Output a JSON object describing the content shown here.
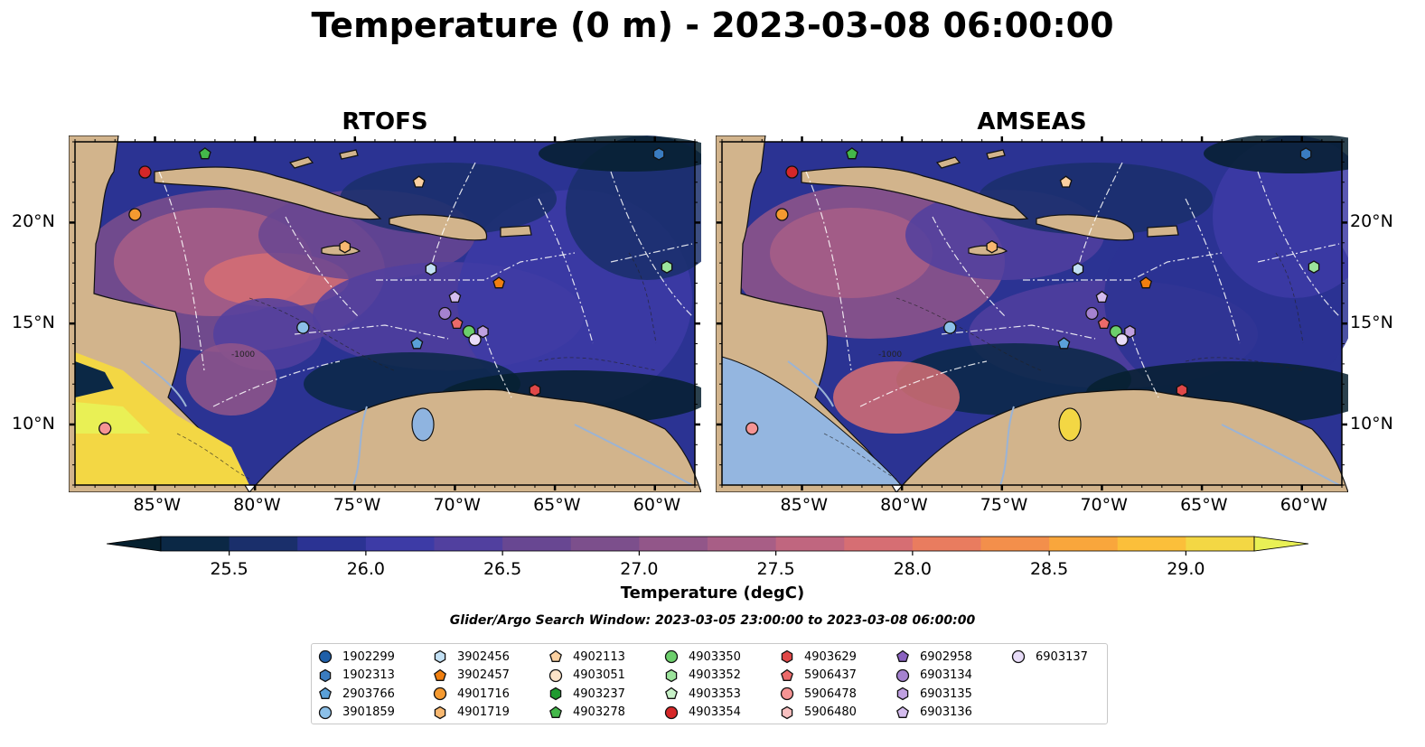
{
  "title": "Temperature (0 m) - 2023-03-08 06:00:00",
  "panels": [
    {
      "title": "RTOFS",
      "lat_labels_side": "left"
    },
    {
      "title": "AMSEAS",
      "lat_labels_side": "right"
    }
  ],
  "map_extent": {
    "lon_min": -89,
    "lon_max": -58,
    "lat_min": 7,
    "lat_max": 24
  },
  "lon_ticks": [
    {
      "value": -85,
      "label": "85°W"
    },
    {
      "value": -80,
      "label": "80°W"
    },
    {
      "value": -75,
      "label": "75°W"
    },
    {
      "value": -70,
      "label": "70°W"
    },
    {
      "value": -65,
      "label": "65°W"
    },
    {
      "value": -60,
      "label": "60°W"
    }
  ],
  "lat_ticks": [
    {
      "value": 20,
      "label": "20°N"
    },
    {
      "value": 15,
      "label": "15°N"
    },
    {
      "value": 10,
      "label": "10°N"
    }
  ],
  "contour_label": "-1000",
  "colorbar": {
    "label": "Temperature (degC)",
    "min": 25.25,
    "max": 29.25,
    "extend": "both",
    "ticks": [
      {
        "value": 25.5,
        "label": "25.5"
      },
      {
        "value": 26.0,
        "label": "26.0"
      },
      {
        "value": 26.5,
        "label": "26.5"
      },
      {
        "value": 27.0,
        "label": "27.0"
      },
      {
        "value": 27.5,
        "label": "27.5"
      },
      {
        "value": 28.0,
        "label": "28.0"
      },
      {
        "value": 28.5,
        "label": "28.5"
      },
      {
        "value": 29.0,
        "label": "29.0"
      }
    ],
    "colors": [
      "#06202f",
      "#0b2845",
      "#1a2f6b",
      "#2b3393",
      "#3d3ba6",
      "#51409f",
      "#684792",
      "#7c4f8c",
      "#925689",
      "#a85e86",
      "#c0667f",
      "#d66e73",
      "#e97c5f",
      "#f38f4b",
      "#f9a63c",
      "#fbbf3a",
      "#f3d744",
      "#e9f055"
    ]
  },
  "subtitle": "Glider/Argo Search Window: 2023-03-05 23:00:00 to 2023-03-08 06:00:00",
  "legend": [
    {
      "id": "1902299",
      "marker": "circle",
      "color": "#1f5fa8"
    },
    {
      "id": "1902313",
      "marker": "hexagon",
      "color": "#3a7cc0"
    },
    {
      "id": "2903766",
      "marker": "pentagon",
      "color": "#5aa0d8"
    },
    {
      "id": "3901859",
      "marker": "circle",
      "color": "#8cc0e8"
    },
    {
      "id": "3902456",
      "marker": "hexagon",
      "color": "#c2e0f4"
    },
    {
      "id": "3902457",
      "marker": "pentagon",
      "color": "#f07f10"
    },
    {
      "id": "4901716",
      "marker": "circle",
      "color": "#f59a30"
    },
    {
      "id": "4901719",
      "marker": "hexagon",
      "color": "#f8b870"
    },
    {
      "id": "4902113",
      "marker": "pentagon",
      "color": "#fbd0a0"
    },
    {
      "id": "4903051",
      "marker": "circle",
      "color": "#fde3c8"
    },
    {
      "id": "4903237",
      "marker": "hexagon",
      "color": "#1f9a30"
    },
    {
      "id": "4903278",
      "marker": "pentagon",
      "color": "#44b84a"
    },
    {
      "id": "4903350",
      "marker": "circle",
      "color": "#6ccf6c"
    },
    {
      "id": "4903352",
      "marker": "hexagon",
      "color": "#9ce49c"
    },
    {
      "id": "4903353",
      "marker": "pentagon",
      "color": "#c8f2c8"
    },
    {
      "id": "4903354",
      "marker": "circle",
      "color": "#d62728"
    },
    {
      "id": "4903629",
      "marker": "hexagon",
      "color": "#e04848"
    },
    {
      "id": "5906437",
      "marker": "pentagon",
      "color": "#ec6a6a"
    },
    {
      "id": "5906478",
      "marker": "circle",
      "color": "#f59494"
    },
    {
      "id": "5906480",
      "marker": "hexagon",
      "color": "#f8c0c0"
    },
    {
      "id": "6902958",
      "marker": "pentagon",
      "color": "#8a62c0"
    },
    {
      "id": "6903134",
      "marker": "circle",
      "color": "#a582d0"
    },
    {
      "id": "6903135",
      "marker": "hexagon",
      "color": "#bfa0e0"
    },
    {
      "id": "6903136",
      "marker": "pentagon",
      "color": "#d4bcee"
    },
    {
      "id": "6903137",
      "marker": "circle",
      "color": "#e8dcf8"
    }
  ],
  "platform_positions": [
    {
      "id": "4903278",
      "lon": -82.5,
      "lat": 23.4
    },
    {
      "id": "1902313",
      "lon": -59.8,
      "lat": 23.4
    },
    {
      "id": "4903354",
      "lon": -85.5,
      "lat": 22.5
    },
    {
      "id": "4902113",
      "lon": -71.8,
      "lat": 22.0
    },
    {
      "id": "4901716",
      "lon": -86.0,
      "lat": 20.4
    },
    {
      "id": "4901719",
      "lon": -75.5,
      "lat": 18.8
    },
    {
      "id": "4903352",
      "lon": -59.4,
      "lat": 17.8
    },
    {
      "id": "3902456",
      "lon": -71.2,
      "lat": 17.7
    },
    {
      "id": "3902457",
      "lon": -67.8,
      "lat": 17.0
    },
    {
      "id": "6903136",
      "lon": -70.0,
      "lat": 16.3
    },
    {
      "id": "6903134",
      "lon": -70.5,
      "lat": 15.5
    },
    {
      "id": "5906437",
      "lon": -69.9,
      "lat": 15.0
    },
    {
      "id": "3901859",
      "lon": -77.6,
      "lat": 14.8
    },
    {
      "id": "4903350",
      "lon": -69.3,
      "lat": 14.6
    },
    {
      "id": "6903135",
      "lon": -68.6,
      "lat": 14.6
    },
    {
      "id": "6903137",
      "lon": -69.0,
      "lat": 14.2
    },
    {
      "id": "2903766",
      "lon": -71.9,
      "lat": 14.0
    },
    {
      "id": "4903629",
      "lon": -66.0,
      "lat": 11.7
    },
    {
      "id": "5906478",
      "lon": -87.5,
      "lat": 9.8
    }
  ]
}
